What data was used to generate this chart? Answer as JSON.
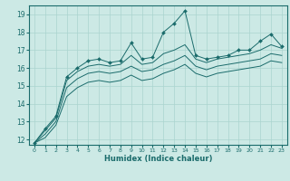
{
  "xlabel": "Humidex (Indice chaleur)",
  "ylabel": "",
  "xlim": [
    -0.5,
    23.5
  ],
  "ylim": [
    11.7,
    19.5
  ],
  "xticks": [
    0,
    1,
    2,
    3,
    4,
    5,
    6,
    7,
    8,
    9,
    10,
    11,
    12,
    13,
    14,
    15,
    16,
    17,
    18,
    19,
    20,
    21,
    22,
    23
  ],
  "yticks": [
    12,
    13,
    14,
    15,
    16,
    17,
    18,
    19
  ],
  "background_color": "#cce9e5",
  "grid_color": "#aad4cf",
  "line_color": "#1a6b6b",
  "line1_y": [
    11.8,
    12.6,
    13.3,
    15.5,
    16.0,
    16.4,
    16.5,
    16.3,
    16.4,
    17.4,
    16.5,
    16.6,
    18.0,
    18.5,
    19.2,
    16.7,
    16.5,
    16.6,
    16.7,
    17.0,
    17.0,
    17.5,
    17.9,
    17.2
  ],
  "line2_y": [
    11.8,
    12.5,
    13.2,
    15.3,
    15.8,
    16.1,
    16.2,
    16.1,
    16.2,
    16.7,
    16.2,
    16.3,
    16.8,
    17.0,
    17.3,
    16.5,
    16.3,
    16.5,
    16.6,
    16.7,
    16.8,
    17.0,
    17.3,
    17.1
  ],
  "line3_y": [
    11.8,
    12.3,
    13.0,
    14.9,
    15.4,
    15.7,
    15.8,
    15.7,
    15.8,
    16.1,
    15.8,
    15.9,
    16.2,
    16.4,
    16.7,
    16.1,
    15.9,
    16.1,
    16.2,
    16.3,
    16.4,
    16.5,
    16.8,
    16.7
  ],
  "line4_y": [
    11.8,
    12.1,
    12.8,
    14.4,
    14.9,
    15.2,
    15.3,
    15.2,
    15.3,
    15.6,
    15.3,
    15.4,
    15.7,
    15.9,
    16.2,
    15.7,
    15.5,
    15.7,
    15.8,
    15.9,
    16.0,
    16.1,
    16.4,
    16.3
  ]
}
